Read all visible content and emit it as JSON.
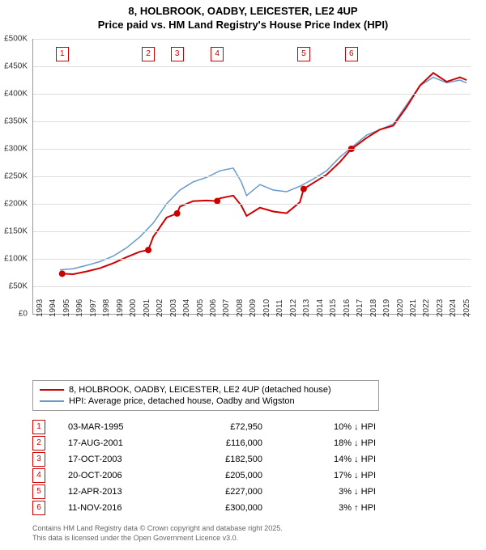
{
  "title_line1": "8, HOLBROOK, OADBY, LEICESTER, LE2 4UP",
  "title_line2": "Price paid vs. HM Land Registry's House Price Index (HPI)",
  "chart": {
    "type": "line",
    "background_color": "#ffffff",
    "grid_color": "#dddddd",
    "axis_color": "#999999",
    "text_color": "#333333",
    "x_range": [
      1993,
      2025.8
    ],
    "y_range": [
      0,
      500000
    ],
    "y_ticks": [
      0,
      50000,
      100000,
      150000,
      200000,
      250000,
      300000,
      350000,
      400000,
      450000,
      500000
    ],
    "y_tick_labels": [
      "£0",
      "£50K",
      "£100K",
      "£150K",
      "£200K",
      "£250K",
      "£300K",
      "£350K",
      "£400K",
      "£450K",
      "£500K"
    ],
    "x_ticks": [
      1993,
      1994,
      1995,
      1996,
      1997,
      1998,
      1999,
      2000,
      2001,
      2002,
      2003,
      2004,
      2005,
      2006,
      2007,
      2008,
      2009,
      2010,
      2011,
      2012,
      2013,
      2014,
      2015,
      2016,
      2017,
      2018,
      2019,
      2020,
      2021,
      2022,
      2023,
      2024,
      2025
    ],
    "series": [
      {
        "name": "HPI: Average price, detached house, Oadby and Wigston",
        "color": "#6699cc",
        "width": 1.5,
        "points": [
          [
            1995.0,
            80000
          ],
          [
            1996.0,
            82000
          ],
          [
            1997.0,
            88000
          ],
          [
            1998.0,
            95000
          ],
          [
            1999.0,
            105000
          ],
          [
            2000.0,
            120000
          ],
          [
            2001.0,
            140000
          ],
          [
            2002.0,
            165000
          ],
          [
            2003.0,
            200000
          ],
          [
            2004.0,
            225000
          ],
          [
            2005.0,
            240000
          ],
          [
            2006.0,
            248000
          ],
          [
            2007.0,
            260000
          ],
          [
            2008.0,
            265000
          ],
          [
            2008.6,
            240000
          ],
          [
            2009.0,
            215000
          ],
          [
            2010.0,
            235000
          ],
          [
            2011.0,
            225000
          ],
          [
            2012.0,
            222000
          ],
          [
            2013.0,
            232000
          ],
          [
            2014.0,
            245000
          ],
          [
            2015.0,
            260000
          ],
          [
            2016.0,
            285000
          ],
          [
            2017.0,
            305000
          ],
          [
            2018.0,
            325000
          ],
          [
            2019.0,
            335000
          ],
          [
            2020.0,
            345000
          ],
          [
            2021.0,
            380000
          ],
          [
            2022.0,
            415000
          ],
          [
            2023.0,
            430000
          ],
          [
            2024.0,
            420000
          ],
          [
            2025.0,
            425000
          ],
          [
            2025.5,
            420000
          ]
        ]
      },
      {
        "name": "8, HOLBROOK, OADBY, LEICESTER, LE2 4UP (detached house)",
        "color": "#cc0000",
        "width": 2,
        "points": [
          [
            1995.17,
            72950
          ],
          [
            1996.0,
            72000
          ],
          [
            1997.0,
            77000
          ],
          [
            1998.0,
            83000
          ],
          [
            1999.0,
            92000
          ],
          [
            2000.0,
            103000
          ],
          [
            2001.0,
            113000
          ],
          [
            2001.63,
            116000
          ],
          [
            2002.0,
            140000
          ],
          [
            2003.0,
            175000
          ],
          [
            2003.79,
            182500
          ],
          [
            2004.0,
            195000
          ],
          [
            2005.0,
            205000
          ],
          [
            2006.0,
            206000
          ],
          [
            2006.8,
            205000
          ],
          [
            2007.0,
            210000
          ],
          [
            2008.0,
            215000
          ],
          [
            2008.6,
            197000
          ],
          [
            2009.0,
            178000
          ],
          [
            2010.0,
            193000
          ],
          [
            2011.0,
            186000
          ],
          [
            2012.0,
            183000
          ],
          [
            2013.0,
            203000
          ],
          [
            2013.28,
            227000
          ],
          [
            2014.0,
            238000
          ],
          [
            2015.0,
            253000
          ],
          [
            2016.0,
            276000
          ],
          [
            2016.86,
            300000
          ],
          [
            2017.0,
            302000
          ],
          [
            2018.0,
            320000
          ],
          [
            2019.0,
            335000
          ],
          [
            2020.0,
            342000
          ],
          [
            2021.0,
            376000
          ],
          [
            2022.0,
            415000
          ],
          [
            2023.0,
            438000
          ],
          [
            2024.0,
            422000
          ],
          [
            2025.0,
            430000
          ],
          [
            2025.5,
            425000
          ]
        ]
      }
    ],
    "sale_dots": {
      "color": "#cc0000",
      "radius": 4,
      "points": [
        [
          1995.17,
          72950
        ],
        [
          2001.63,
          116000
        ],
        [
          2003.79,
          182500
        ],
        [
          2006.8,
          205000
        ],
        [
          2013.28,
          227000
        ],
        [
          2016.86,
          300000
        ]
      ]
    },
    "marker_boxes": [
      {
        "n": "1",
        "x": 1995.17
      },
      {
        "n": "2",
        "x": 2001.63
      },
      {
        "n": "3",
        "x": 2003.79
      },
      {
        "n": "4",
        "x": 2006.8
      },
      {
        "n": "5",
        "x": 2013.28
      },
      {
        "n": "6",
        "x": 2016.86
      }
    ],
    "marker_box_color": "#cc0000",
    "marker_box_top_y": 485000
  },
  "legend": [
    {
      "color": "#cc0000",
      "label": "8, HOLBROOK, OADBY, LEICESTER, LE2 4UP (detached house)"
    },
    {
      "color": "#6699cc",
      "label": "HPI: Average price, detached house, Oadby and Wigston"
    }
  ],
  "sales": [
    {
      "n": "1",
      "date": "03-MAR-1995",
      "price": "£72,950",
      "diff": "10% ↓ HPI"
    },
    {
      "n": "2",
      "date": "17-AUG-2001",
      "price": "£116,000",
      "diff": "18% ↓ HPI"
    },
    {
      "n": "3",
      "date": "17-OCT-2003",
      "price": "£182,500",
      "diff": "14% ↓ HPI"
    },
    {
      "n": "4",
      "date": "20-OCT-2006",
      "price": "£205,000",
      "diff": "17% ↓ HPI"
    },
    {
      "n": "5",
      "date": "12-APR-2013",
      "price": "£227,000",
      "diff": "3% ↓ HPI"
    },
    {
      "n": "6",
      "date": "11-NOV-2016",
      "price": "£300,000",
      "diff": "3% ↑ HPI"
    }
  ],
  "footer_line1": "Contains HM Land Registry data © Crown copyright and database right 2025.",
  "footer_line2": "This data is licensed under the Open Government Licence v3.0."
}
